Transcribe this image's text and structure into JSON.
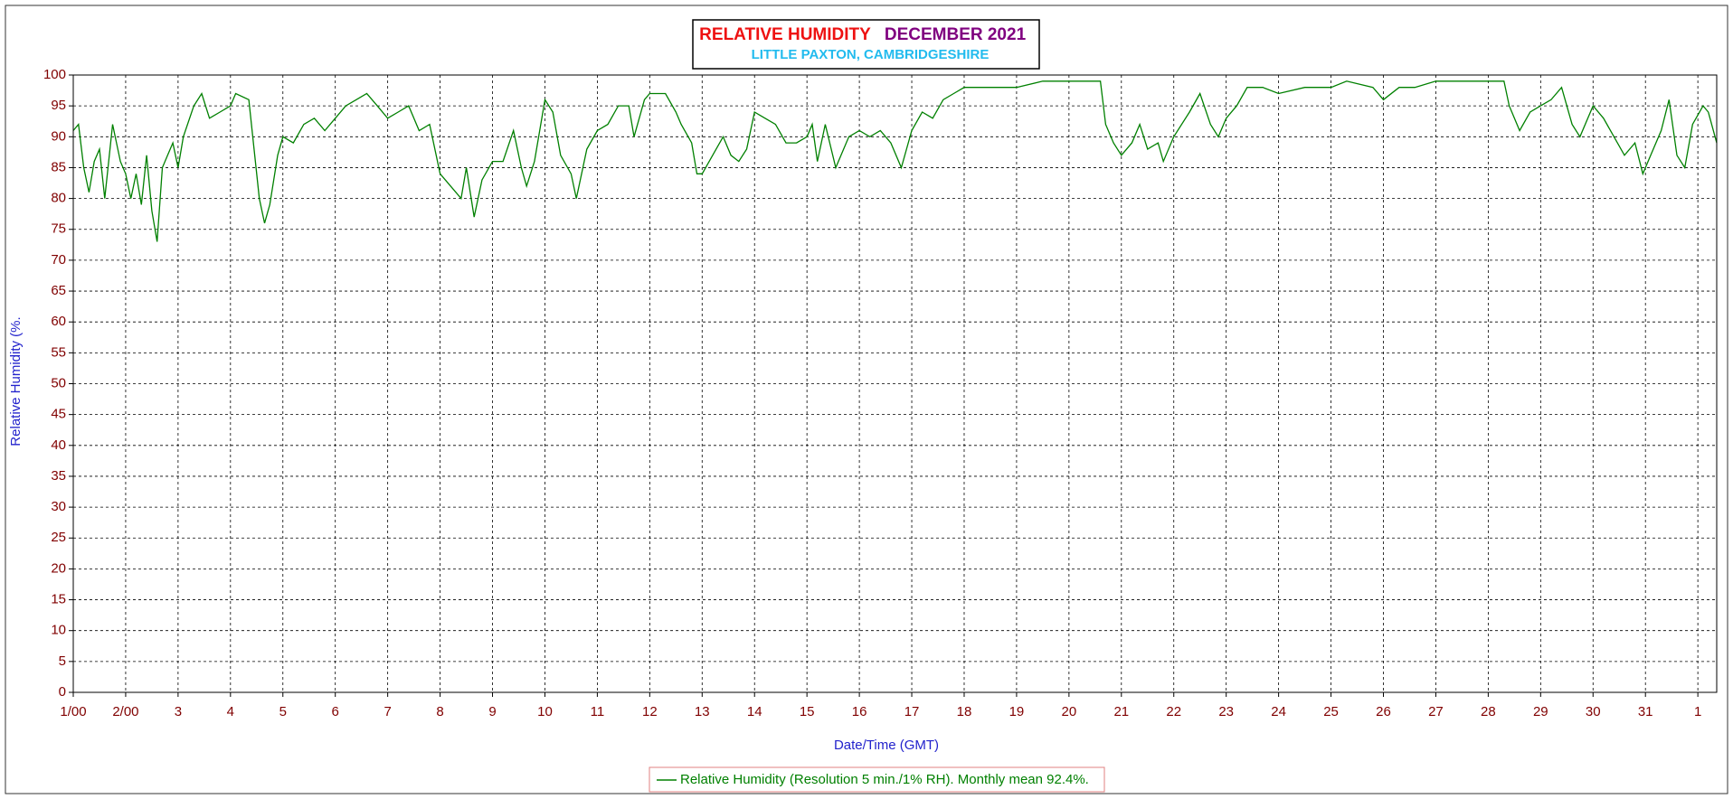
{
  "chart_data": {
    "type": "line",
    "title": "RELATIVE HUMIDITY",
    "title_date": "DECEMBER 2021",
    "subtitle": "LITTLE PAXTON, CAMBRIDGESHIRE",
    "x_label": "Date/Time (GMT)",
    "y_label": "Relative Humidity (%.",
    "x": [
      1.0,
      1.1,
      1.2,
      1.3,
      1.4,
      1.5,
      1.6,
      1.7,
      1.75,
      1.9,
      2.0,
      2.1,
      2.2,
      2.3,
      2.4,
      2.5,
      2.6,
      2.7,
      2.8,
      2.9,
      3.0,
      3.1,
      3.3,
      3.45,
      3.6,
      3.8,
      4.0,
      4.1,
      4.35,
      4.45,
      4.55,
      4.65,
      4.75,
      4.9,
      5.0,
      5.2,
      5.4,
      5.6,
      5.8,
      6.0,
      6.2,
      6.4,
      6.6,
      6.8,
      7.0,
      7.2,
      7.4,
      7.6,
      7.8,
      8.0,
      8.2,
      8.4,
      8.5,
      8.65,
      8.8,
      9.0,
      9.2,
      9.4,
      9.55,
      9.65,
      9.8,
      10.0,
      10.15,
      10.3,
      10.5,
      10.6,
      10.8,
      11.0,
      11.2,
      11.4,
      11.6,
      11.7,
      11.9,
      12.0,
      12.3,
      12.5,
      12.6,
      12.8,
      12.9,
      13.0,
      13.2,
      13.4,
      13.55,
      13.7,
      13.85,
      14.0,
      14.2,
      14.4,
      14.6,
      14.8,
      15.0,
      15.1,
      15.2,
      15.35,
      15.55,
      15.8,
      16.0,
      16.2,
      16.4,
      16.6,
      16.8,
      17.0,
      17.2,
      17.4,
      17.6,
      17.8,
      18.0,
      18.5,
      19.0,
      19.5,
      20.0,
      20.6,
      20.7,
      20.85,
      21.0,
      21.2,
      21.35,
      21.5,
      21.7,
      21.8,
      22.0,
      22.3,
      22.5,
      22.7,
      22.85,
      23.0,
      23.2,
      23.4,
      23.7,
      24.0,
      24.5,
      25.0,
      25.3,
      25.8,
      26.0,
      26.3,
      26.6,
      27.0,
      27.5,
      28.0,
      28.3,
      28.4,
      28.6,
      28.8,
      29.0,
      29.2,
      29.4,
      29.6,
      29.75,
      29.9,
      30.0,
      30.2,
      30.4,
      30.6,
      30.8,
      30.95,
      31.1,
      31.3,
      31.45,
      31.6,
      31.75,
      31.9,
      32.1,
      32.2,
      32.36
    ],
    "series": [
      {
        "name": "Relative Humidity (Resolution 5 min./1% RH). Monthly mean 92.4%.",
        "color": "#008000",
        "values": [
          91,
          92,
          85,
          81,
          86,
          88,
          80,
          88,
          92,
          86,
          84,
          80,
          84,
          79,
          87,
          78,
          73,
          85,
          87,
          89,
          85,
          90,
          95,
          97,
          93,
          94,
          95,
          97,
          96,
          88,
          80,
          76,
          79,
          87,
          90,
          89,
          92,
          93,
          91,
          93,
          95,
          96,
          97,
          95,
          93,
          94,
          95,
          91,
          92,
          84,
          82,
          80,
          85,
          77,
          83,
          86,
          86,
          91,
          85,
          82,
          86,
          96,
          94,
          87,
          84,
          80,
          88,
          91,
          92,
          95,
          95,
          90,
          96,
          97,
          97,
          94,
          92,
          89,
          84,
          84,
          87,
          90,
          87,
          86,
          88,
          94,
          93,
          92,
          89,
          89,
          90,
          92,
          86,
          92,
          85,
          90,
          91,
          90,
          91,
          89,
          85,
          91,
          94,
          93,
          96,
          97,
          98,
          98,
          98,
          99,
          99,
          99,
          92,
          89,
          87,
          89,
          92,
          88,
          89,
          86,
          90,
          94,
          97,
          92,
          90,
          93,
          95,
          98,
          98,
          97,
          98,
          98,
          99,
          98,
          96,
          98,
          98,
          99,
          99,
          99,
          99,
          95,
          91,
          94,
          95,
          96,
          98,
          92,
          90,
          93,
          95,
          93,
          90,
          87,
          89,
          84,
          87,
          91,
          96,
          87,
          85,
          92,
          95,
          94,
          89
        ]
      }
    ],
    "xlim": [
      1,
      32.36
    ],
    "xticks": [
      {
        "value": 1,
        "label": "1/00"
      },
      {
        "value": 2,
        "label": "2/00"
      },
      3,
      4,
      5,
      6,
      7,
      8,
      9,
      10,
      11,
      12,
      13,
      14,
      15,
      16,
      17,
      18,
      19,
      20,
      21,
      22,
      23,
      24,
      25,
      26,
      27,
      28,
      29,
      30,
      31,
      {
        "value": 32,
        "label": "1"
      }
    ],
    "ylim": [
      0,
      100
    ],
    "yticks": [
      0,
      5,
      10,
      15,
      20,
      25,
      30,
      35,
      40,
      45,
      50,
      55,
      60,
      65,
      70,
      75,
      80,
      85,
      90,
      95,
      100
    ],
    "grid": true
  }
}
